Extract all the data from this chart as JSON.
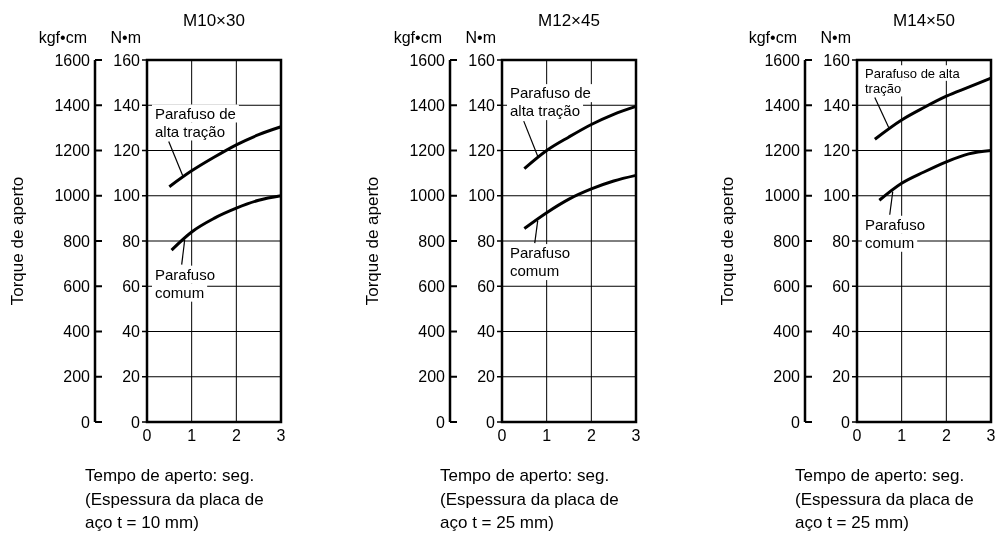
{
  "chart_data": [
    {
      "type": "line",
      "title": "M10×30",
      "xlabel": "Tempo de aperto: seg.",
      "ylabel": "Torque de aperto",
      "annotations": [
        "kgf•cm",
        "N•m",
        "(Espessura da placa de aço t = 10 mm)"
      ],
      "xlim": [
        0,
        3
      ],
      "xticks": [
        0,
        1,
        2,
        3
      ],
      "ylim": [
        0,
        1600
      ],
      "yticks": [
        0,
        200,
        400,
        600,
        800,
        1000,
        1200,
        1400,
        1600
      ],
      "y2lim": [
        0,
        160
      ],
      "y2ticks": [
        0,
        20,
        40,
        60,
        80,
        100,
        120,
        140,
        160
      ],
      "grid": true,
      "series": [
        {
          "name": "Parafuso de alta tração",
          "color": "#000000",
          "axis": "y2",
          "x": [
            0.5,
            1,
            1.5,
            2,
            2.5,
            3
          ],
          "values": [
            104,
            111,
            117,
            122.5,
            127,
            130.5
          ]
        },
        {
          "name": "Parafuso comum",
          "color": "#000000",
          "axis": "y2",
          "x": [
            0.55,
            1,
            1.5,
            2,
            2.5,
            3
          ],
          "values": [
            76,
            84,
            90,
            94.5,
            98,
            100
          ]
        }
      ]
    },
    {
      "type": "line",
      "title": "M12×45",
      "xlabel": "Tempo de aperto: seg.",
      "ylabel": "Torque de aperto",
      "annotations": [
        "kgf•cm",
        "N•m",
        "(Espessura da placa de aço t = 25 mm)"
      ],
      "xlim": [
        0,
        3
      ],
      "xticks": [
        0,
        1,
        2,
        3
      ],
      "ylim": [
        0,
        1600
      ],
      "yticks": [
        0,
        200,
        400,
        600,
        800,
        1000,
        1200,
        1400,
        1600
      ],
      "y2lim": [
        0,
        160
      ],
      "y2ticks": [
        0,
        20,
        40,
        60,
        80,
        100,
        120,
        140,
        160
      ],
      "grid": true,
      "series": [
        {
          "name": "Parafuso de alta tração",
          "color": "#000000",
          "axis": "y2",
          "x": [
            0.5,
            1,
            1.5,
            2,
            2.5,
            3
          ],
          "values": [
            112,
            120,
            126,
            131.5,
            136,
            139.5
          ]
        },
        {
          "name": "Parafuso comum",
          "color": "#000000",
          "axis": "y2",
          "x": [
            0.5,
            1,
            1.5,
            2,
            2.5,
            3
          ],
          "values": [
            85.5,
            92.5,
            98.5,
            103,
            106.5,
            109
          ]
        }
      ]
    },
    {
      "type": "line",
      "title": "M14×50",
      "xlabel": "Tempo de aperto: seg.",
      "ylabel": "Torque de aperto",
      "annotations": [
        "kgf•cm",
        "N•m",
        "(Espessura da placa de aço t = 25 mm)"
      ],
      "xlim": [
        0,
        3
      ],
      "xticks": [
        0,
        1,
        2,
        3
      ],
      "ylim": [
        0,
        1600
      ],
      "yticks": [
        0,
        200,
        400,
        600,
        800,
        1000,
        1200,
        1400,
        1600
      ],
      "y2lim": [
        0,
        160
      ],
      "y2ticks": [
        0,
        20,
        40,
        60,
        80,
        100,
        120,
        140,
        160
      ],
      "grid": true,
      "series": [
        {
          "name": "Parafuso de alta tração",
          "color": "#000000",
          "axis": "y2",
          "x": [
            0.4,
            1,
            1.5,
            2,
            2.5,
            3
          ],
          "values": [
            125,
            133.5,
            139,
            144,
            148,
            152
          ]
        },
        {
          "name": "Parafuso comum",
          "color": "#000000",
          "axis": "y2",
          "x": [
            0.5,
            1,
            1.5,
            2,
            2.5,
            3
          ],
          "values": [
            98,
            105.5,
            110.5,
            115,
            118.5,
            120
          ]
        }
      ]
    }
  ]
}
